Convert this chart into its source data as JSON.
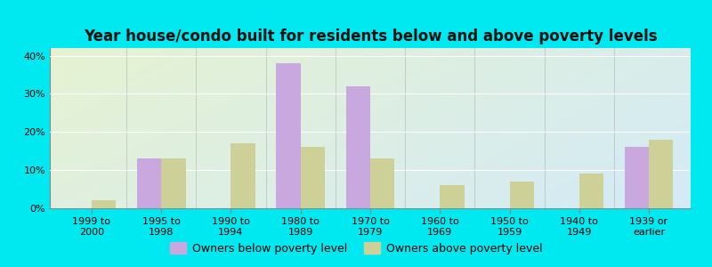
{
  "title": "Year house/condo built for residents below and above poverty levels",
  "categories": [
    "1999 to\n2000",
    "1995 to\n1998",
    "1990 to\n1994",
    "1980 to\n1989",
    "1970 to\n1979",
    "1960 to\n1969",
    "1950 to\n1959",
    "1940 to\n1949",
    "1939 or\nearlier"
  ],
  "below_poverty": [
    0,
    13,
    0,
    38,
    32,
    0,
    0,
    0,
    16
  ],
  "above_poverty": [
    2,
    13,
    17,
    16,
    13,
    6,
    7,
    9,
    18
  ],
  "below_color": "#c9a8e0",
  "above_color": "#cdd198",
  "background_outer": "#00e8f0",
  "background_inner_left": "#d8f0d0",
  "background_inner_right": "#d0f0ee",
  "ylim": [
    0,
    42
  ],
  "yticks": [
    0,
    10,
    20,
    30,
    40
  ],
  "ytick_labels": [
    "0%",
    "10%",
    "20%",
    "30%",
    "40%"
  ],
  "bar_width": 0.35,
  "legend_below": "Owners below poverty level",
  "legend_above": "Owners above poverty level",
  "title_fontsize": 12,
  "tick_fontsize": 8,
  "legend_fontsize": 9
}
